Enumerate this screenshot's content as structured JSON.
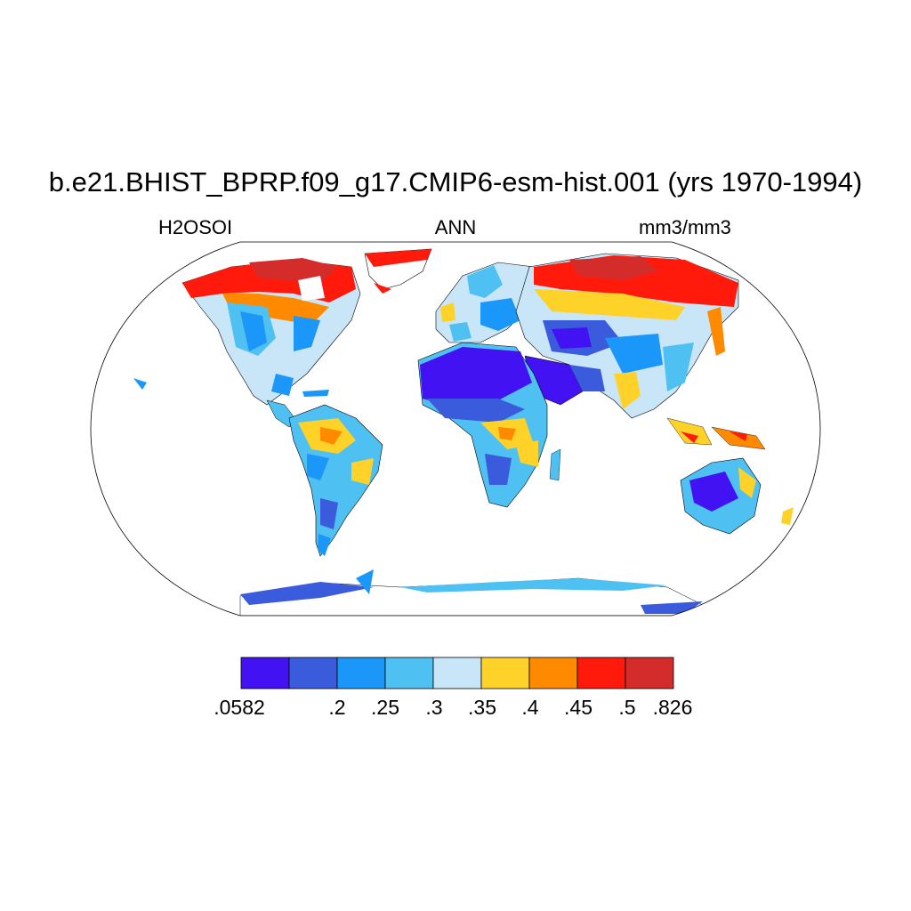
{
  "title": "b.e21.BHIST_BPRP.f09_g17.CMIP6-esm-hist.001 (yrs 1970-1994)",
  "subtitles": {
    "left": "H2OSOI",
    "center": "ANN",
    "right": "mm3/mm3"
  },
  "colorbar": {
    "colors": [
      "#4212F2",
      "#3B5BDD",
      "#1B96F9",
      "#4EC0F2",
      "#C8E6F7",
      "#FFD22A",
      "#FF8A00",
      "#FF1A0C",
      "#D42B2B"
    ],
    "labels": [
      ".0582",
      ".2",
      ".25",
      ".3",
      ".35",
      ".4",
      ".45",
      ".5",
      ".826"
    ]
  },
  "map": {
    "projection": "Robinson",
    "land_fill": "#C8E6F7",
    "ocean_fill": "#ffffff"
  }
}
